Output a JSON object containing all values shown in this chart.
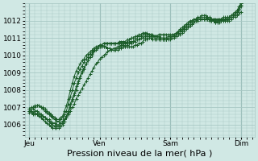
{
  "background_color": "#d0e8e4",
  "plot_bg_color": "#d0e8e4",
  "grid_color": "#a8c8c4",
  "line_color": "#1a5c28",
  "xlabel": "Pression niveau de la mer( hPa )",
  "xlabel_fontsize": 8,
  "yticks": [
    1006,
    1007,
    1008,
    1009,
    1010,
    1011,
    1012
  ],
  "ylim": [
    1005.3,
    1013.0
  ],
  "xtick_labels": [
    "Jeu",
    "Ven",
    "Sam",
    "Dim"
  ],
  "xtick_positions": [
    0,
    36,
    72,
    108
  ],
  "xlim": [
    -2,
    115
  ],
  "num_points": 109,
  "series": [
    [
      1006.7,
      1006.7,
      1006.6,
      1006.6,
      1006.6,
      1006.6,
      1006.5,
      1006.5,
      1006.4,
      1006.3,
      1006.3,
      1006.2,
      1006.1,
      1006.1,
      1006.0,
      1006.0,
      1006.1,
      1006.2,
      1006.3,
      1006.4,
      1006.6,
      1006.8,
      1007.0,
      1007.2,
      1007.5,
      1007.7,
      1007.9,
      1008.1,
      1008.3,
      1008.5,
      1008.7,
      1008.9,
      1009.1,
      1009.3,
      1009.5,
      1009.6,
      1009.8,
      1009.9,
      1010.0,
      1010.1,
      1010.2,
      1010.3,
      1010.3,
      1010.4,
      1010.4,
      1010.5,
      1010.5,
      1010.5,
      1010.5,
      1010.5,
      1010.5,
      1010.5,
      1010.5,
      1010.5,
      1010.6,
      1010.6,
      1010.7,
      1010.7,
      1010.8,
      1010.9,
      1010.9,
      1011.0,
      1011.0,
      1011.1,
      1011.1,
      1011.1,
      1011.2,
      1011.2,
      1011.2,
      1011.2,
      1011.2,
      1011.2,
      1011.2,
      1011.2,
      1011.2,
      1011.3,
      1011.3,
      1011.4,
      1011.4,
      1011.5,
      1011.6,
      1011.7,
      1011.7,
      1011.8,
      1011.9,
      1012.0,
      1012.0,
      1012.1,
      1012.1,
      1012.1,
      1012.1,
      1012.1,
      1012.1,
      1012.1,
      1012.1,
      1012.1,
      1012.1,
      1012.1,
      1012.1,
      1012.2,
      1012.2,
      1012.2,
      1012.2,
      1012.2,
      1012.2,
      1012.2,
      1012.3,
      1012.4,
      1012.5
    ],
    [
      1006.8,
      1006.8,
      1006.7,
      1006.7,
      1006.6,
      1006.5,
      1006.4,
      1006.3,
      1006.2,
      1006.1,
      1006.0,
      1005.9,
      1005.8,
      1005.8,
      1005.8,
      1005.8,
      1005.9,
      1006.0,
      1006.2,
      1006.4,
      1006.7,
      1007.0,
      1007.4,
      1007.7,
      1008.0,
      1008.4,
      1008.7,
      1009.0,
      1009.2,
      1009.5,
      1009.7,
      1009.9,
      1010.1,
      1010.3,
      1010.4,
      1010.5,
      1010.5,
      1010.5,
      1010.5,
      1010.5,
      1010.4,
      1010.4,
      1010.3,
      1010.3,
      1010.3,
      1010.3,
      1010.4,
      1010.4,
      1010.5,
      1010.5,
      1010.6,
      1010.7,
      1010.7,
      1010.8,
      1010.8,
      1010.9,
      1010.9,
      1011.0,
      1011.0,
      1011.1,
      1011.1,
      1011.1,
      1011.1,
      1011.1,
      1011.0,
      1011.0,
      1011.0,
      1010.9,
      1010.9,
      1010.9,
      1010.9,
      1010.9,
      1010.9,
      1011.0,
      1011.0,
      1011.1,
      1011.2,
      1011.2,
      1011.3,
      1011.4,
      1011.5,
      1011.6,
      1011.7,
      1011.8,
      1011.9,
      1012.0,
      1012.0,
      1012.1,
      1012.1,
      1012.1,
      1012.1,
      1012.1,
      1012.0,
      1012.0,
      1012.0,
      1011.9,
      1011.9,
      1011.9,
      1012.0,
      1012.0,
      1012.0,
      1012.0,
      1012.0,
      1012.1,
      1012.2,
      1012.3,
      1012.4,
      1012.6,
      1012.8
    ],
    [
      1006.9,
      1006.9,
      1006.9,
      1006.8,
      1006.8,
      1006.7,
      1006.6,
      1006.5,
      1006.4,
      1006.3,
      1006.2,
      1006.1,
      1006.0,
      1005.9,
      1005.9,
      1005.9,
      1006.0,
      1006.1,
      1006.3,
      1006.5,
      1006.8,
      1007.2,
      1007.5,
      1007.8,
      1008.2,
      1008.5,
      1008.8,
      1009.1,
      1009.3,
      1009.5,
      1009.7,
      1009.9,
      1010.0,
      1010.2,
      1010.3,
      1010.4,
      1010.5,
      1010.5,
      1010.5,
      1010.5,
      1010.4,
      1010.4,
      1010.3,
      1010.3,
      1010.3,
      1010.4,
      1010.5,
      1010.6,
      1010.6,
      1010.7,
      1010.8,
      1010.9,
      1011.0,
      1011.0,
      1011.1,
      1011.1,
      1011.2,
      1011.2,
      1011.3,
      1011.3,
      1011.3,
      1011.2,
      1011.2,
      1011.2,
      1011.1,
      1011.1,
      1011.0,
      1011.0,
      1011.0,
      1010.9,
      1010.9,
      1011.0,
      1011.0,
      1011.1,
      1011.1,
      1011.2,
      1011.3,
      1011.4,
      1011.5,
      1011.6,
      1011.7,
      1011.8,
      1011.9,
      1011.9,
      1012.0,
      1012.1,
      1012.1,
      1012.2,
      1012.2,
      1012.2,
      1012.2,
      1012.1,
      1012.1,
      1012.0,
      1012.0,
      1011.9,
      1011.9,
      1012.0,
      1012.0,
      1012.0,
      1012.0,
      1012.1,
      1012.1,
      1012.2,
      1012.3,
      1012.4,
      1012.5,
      1012.7,
      1012.9
    ],
    [
      1006.9,
      1007.0,
      1007.0,
      1007.1,
      1007.1,
      1007.1,
      1007.0,
      1006.9,
      1006.8,
      1006.7,
      1006.6,
      1006.5,
      1006.4,
      1006.3,
      1006.2,
      1006.2,
      1006.3,
      1006.4,
      1006.6,
      1006.8,
      1007.2,
      1007.6,
      1008.0,
      1008.4,
      1008.7,
      1009.0,
      1009.2,
      1009.4,
      1009.6,
      1009.8,
      1009.9,
      1010.1,
      1010.2,
      1010.3,
      1010.4,
      1010.5,
      1010.6,
      1010.6,
      1010.7,
      1010.7,
      1010.7,
      1010.7,
      1010.7,
      1010.7,
      1010.7,
      1010.7,
      1010.7,
      1010.7,
      1010.7,
      1010.7,
      1010.7,
      1010.8,
      1010.8,
      1010.8,
      1010.9,
      1010.9,
      1010.9,
      1011.0,
      1011.0,
      1011.0,
      1011.0,
      1011.0,
      1011.0,
      1010.9,
      1010.9,
      1010.9,
      1010.9,
      1010.9,
      1010.9,
      1010.9,
      1010.9,
      1011.0,
      1011.0,
      1011.1,
      1011.1,
      1011.2,
      1011.3,
      1011.4,
      1011.5,
      1011.6,
      1011.7,
      1011.8,
      1011.9,
      1012.0,
      1012.0,
      1012.1,
      1012.1,
      1012.2,
      1012.2,
      1012.2,
      1012.2,
      1012.2,
      1012.1,
      1012.1,
      1012.0,
      1012.0,
      1012.0,
      1012.0,
      1012.0,
      1012.1,
      1012.1,
      1012.1,
      1012.2,
      1012.3,
      1012.3,
      1012.4,
      1012.5,
      1012.7,
      1013.0
    ],
    [
      1006.8,
      1006.9,
      1007.0,
      1007.0,
      1007.1,
      1007.1,
      1007.0,
      1007.0,
      1006.9,
      1006.8,
      1006.7,
      1006.6,
      1006.5,
      1006.4,
      1006.3,
      1006.3,
      1006.4,
      1006.5,
      1006.8,
      1007.1,
      1007.5,
      1008.0,
      1008.4,
      1008.8,
      1009.1,
      1009.3,
      1009.5,
      1009.7,
      1009.8,
      1010.0,
      1010.1,
      1010.2,
      1010.3,
      1010.4,
      1010.5,
      1010.5,
      1010.6,
      1010.6,
      1010.7,
      1010.7,
      1010.7,
      1010.7,
      1010.7,
      1010.7,
      1010.7,
      1010.7,
      1010.8,
      1010.8,
      1010.8,
      1010.8,
      1010.9,
      1010.9,
      1011.0,
      1011.0,
      1011.0,
      1011.1,
      1011.1,
      1011.1,
      1011.2,
      1011.2,
      1011.2,
      1011.2,
      1011.2,
      1011.1,
      1011.1,
      1011.1,
      1011.1,
      1011.0,
      1011.0,
      1011.0,
      1011.0,
      1011.1,
      1011.1,
      1011.2,
      1011.2,
      1011.3,
      1011.4,
      1011.5,
      1011.6,
      1011.7,
      1011.8,
      1011.9,
      1012.0,
      1012.0,
      1012.1,
      1012.1,
      1012.2,
      1012.2,
      1012.3,
      1012.3,
      1012.3,
      1012.2,
      1012.2,
      1012.1,
      1012.1,
      1012.0,
      1012.0,
      1012.0,
      1012.1,
      1012.1,
      1012.1,
      1012.2,
      1012.2,
      1012.3,
      1012.4,
      1012.5,
      1012.6,
      1012.8,
      1013.0
    ]
  ]
}
